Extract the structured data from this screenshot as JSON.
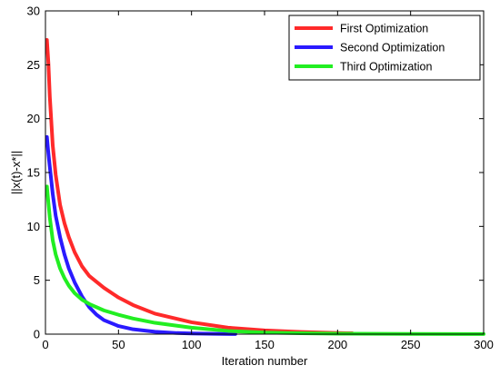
{
  "chart_data": {
    "type": "line",
    "title": "",
    "xlabel": "Iteration number",
    "ylabel": "||x(t)-x*||",
    "xlim": [
      0,
      300
    ],
    "ylim": [
      0,
      30
    ],
    "xticks": [
      0,
      50,
      100,
      150,
      200,
      250,
      300
    ],
    "yticks": [
      0,
      5,
      10,
      15,
      20,
      25,
      30
    ],
    "grid": false,
    "legend_position": "top-right",
    "series": [
      {
        "name": "First Optimization",
        "color": "#ff2a2a",
        "x": [
          1,
          2,
          3,
          5,
          7,
          10,
          13,
          16,
          20,
          25,
          30,
          40,
          50,
          60,
          75,
          100,
          125,
          150,
          175,
          200,
          210
        ],
        "y": [
          27.3,
          25.2,
          22.0,
          17.5,
          14.8,
          12.0,
          10.3,
          9.0,
          7.6,
          6.3,
          5.4,
          4.3,
          3.4,
          2.7,
          1.9,
          1.1,
          0.6,
          0.35,
          0.2,
          0.1,
          0.08
        ]
      },
      {
        "name": "Second Optimization",
        "color": "#2a1aff",
        "x": [
          1,
          2,
          3,
          5,
          7,
          10,
          13,
          16,
          20,
          25,
          30,
          35,
          40,
          50,
          60,
          75,
          90,
          100,
          115,
          130
        ],
        "y": [
          18.3,
          16.8,
          15.5,
          13.0,
          11.0,
          9.0,
          7.4,
          6.1,
          4.8,
          3.5,
          2.5,
          1.8,
          1.3,
          0.75,
          0.45,
          0.22,
          0.1,
          0.06,
          0.03,
          0.01
        ]
      },
      {
        "name": "Third Optimization",
        "color": "#22ee22",
        "x": [
          1,
          2,
          3,
          5,
          7,
          10,
          13,
          16,
          20,
          25,
          30,
          40,
          50,
          60,
          75,
          100,
          125,
          150,
          175,
          200,
          250,
          300
        ],
        "y": [
          13.7,
          12.2,
          10.8,
          8.7,
          7.4,
          6.1,
          5.2,
          4.5,
          3.8,
          3.2,
          2.8,
          2.2,
          1.8,
          1.45,
          1.05,
          0.6,
          0.3,
          0.15,
          0.08,
          0.04,
          0.02,
          0.01
        ]
      }
    ]
  }
}
